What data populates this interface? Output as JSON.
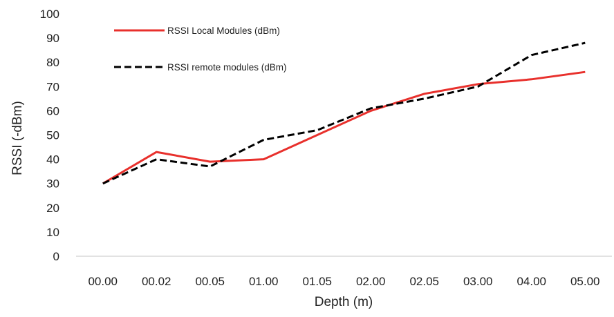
{
  "chart_data": {
    "type": "line",
    "title": "",
    "xlabel": "Depth (m)",
    "ylabel": "RSSI (-dBm)",
    "categories": [
      "00.00",
      "00.02",
      "00.05",
      "01.00",
      "01.05",
      "02.00",
      "02.05",
      "03.00",
      "04.00",
      "05.00"
    ],
    "ylim": [
      0,
      100
    ],
    "yticks": [
      0,
      10,
      20,
      30,
      40,
      50,
      60,
      70,
      80,
      90,
      100
    ],
    "grid": false,
    "legend_position": "top-left",
    "series": [
      {
        "name": "RSSI Local Modules (dBm)",
        "values": [
          30,
          43,
          39,
          40,
          50,
          60,
          67,
          71,
          73,
          76
        ],
        "color": "#e8302c",
        "style": "solid"
      },
      {
        "name": "RSSI remote modules (dBm)",
        "values": [
          30,
          40,
          37,
          48,
          52,
          61,
          65,
          70,
          83,
          88
        ],
        "color": "#000000",
        "style": "dashed"
      }
    ]
  }
}
